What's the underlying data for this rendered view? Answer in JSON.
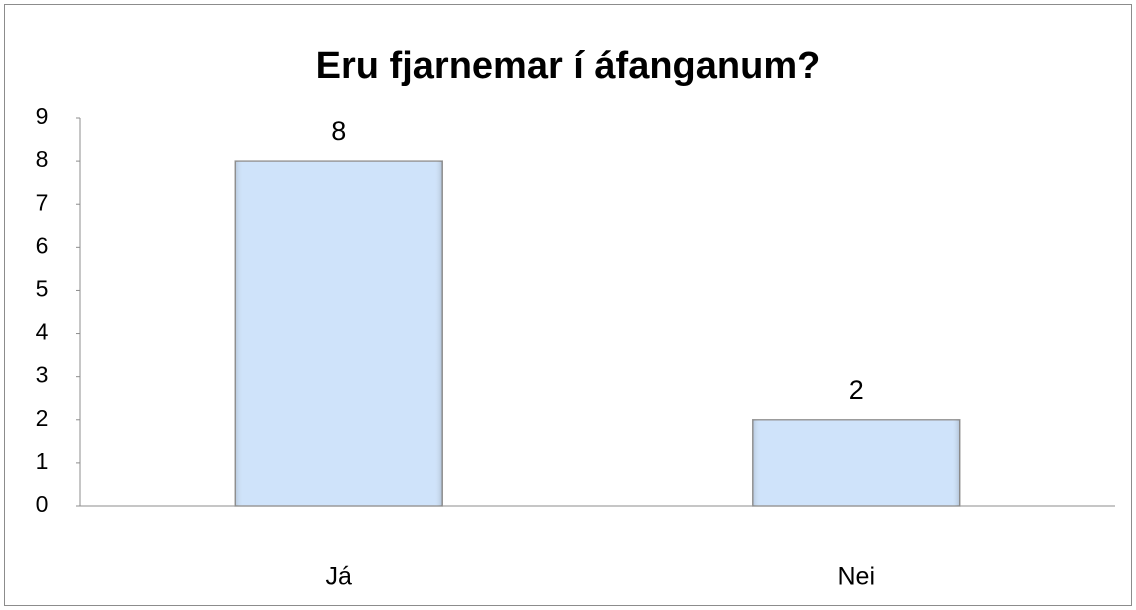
{
  "chart_data": {
    "type": "bar",
    "title": "Eru fjarnemar í áfanganum?",
    "categories": [
      "Já",
      "Nei"
    ],
    "values": [
      8,
      2
    ],
    "color": "#cfe3fa",
    "ylim": [
      0,
      9
    ],
    "yticks": [
      0,
      1,
      2,
      3,
      4,
      5,
      6,
      7,
      8,
      9
    ],
    "grid": false,
    "data_labels": true
  }
}
